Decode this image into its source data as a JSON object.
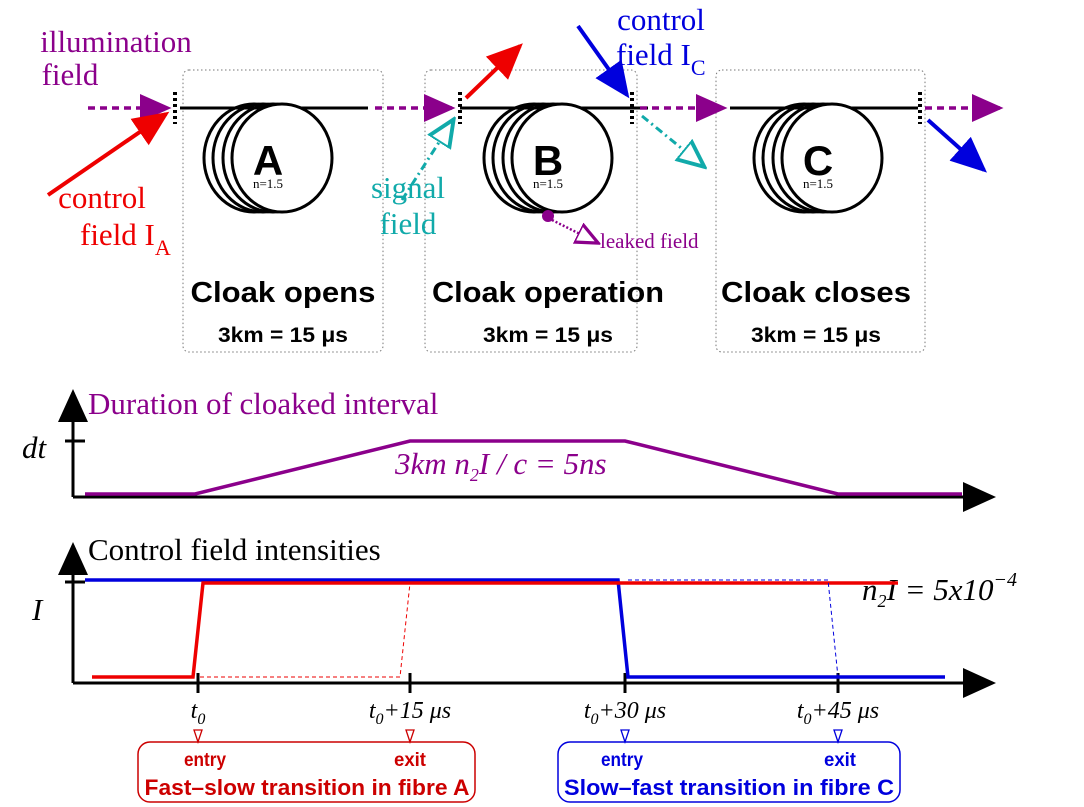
{
  "top": {
    "illumination": [
      "illumination",
      "field"
    ],
    "control_a": {
      "line1": "control",
      "line2": "field I",
      "sub": "A"
    },
    "control_c": {
      "line1": "control",
      "line2": "field I",
      "sub": "C"
    },
    "signal": [
      "signal",
      "field"
    ],
    "leaked": "leaked field",
    "fibres": [
      {
        "letter": "A",
        "index": "n=1.5",
        "title": "Cloak opens",
        "length": "3km = 15 μs"
      },
      {
        "letter": "B",
        "index": "n=1.5",
        "title": "Cloak operation",
        "length": "3km = 15 μs"
      },
      {
        "letter": "C",
        "index": "n=1.5",
        "title": "Cloak closes",
        "length": "3km = 15 μs"
      }
    ]
  },
  "duration": {
    "title": "Duration of cloaked interval",
    "axis": "dt",
    "formula": [
      "3km n",
      "2",
      "I / c = 5ns"
    ]
  },
  "intensity": {
    "title": "Control field intensities",
    "axis": "I",
    "formula": [
      "n",
      "2",
      "I = 5x10",
      "−4"
    ],
    "ticks": [
      [
        "t",
        "0",
        ""
      ],
      [
        "t",
        "0",
        "+15 μs"
      ],
      [
        "t",
        "0",
        "+30 μs"
      ],
      [
        "t",
        "0",
        "+45 μs"
      ]
    ]
  },
  "boxes": [
    {
      "entry": "entry",
      "exit": "exit",
      "label": "Fast–slow transition in fibre A"
    },
    {
      "entry": "entry",
      "exit": "exit",
      "label": "Slow–fast transition in fibre C"
    }
  ]
}
